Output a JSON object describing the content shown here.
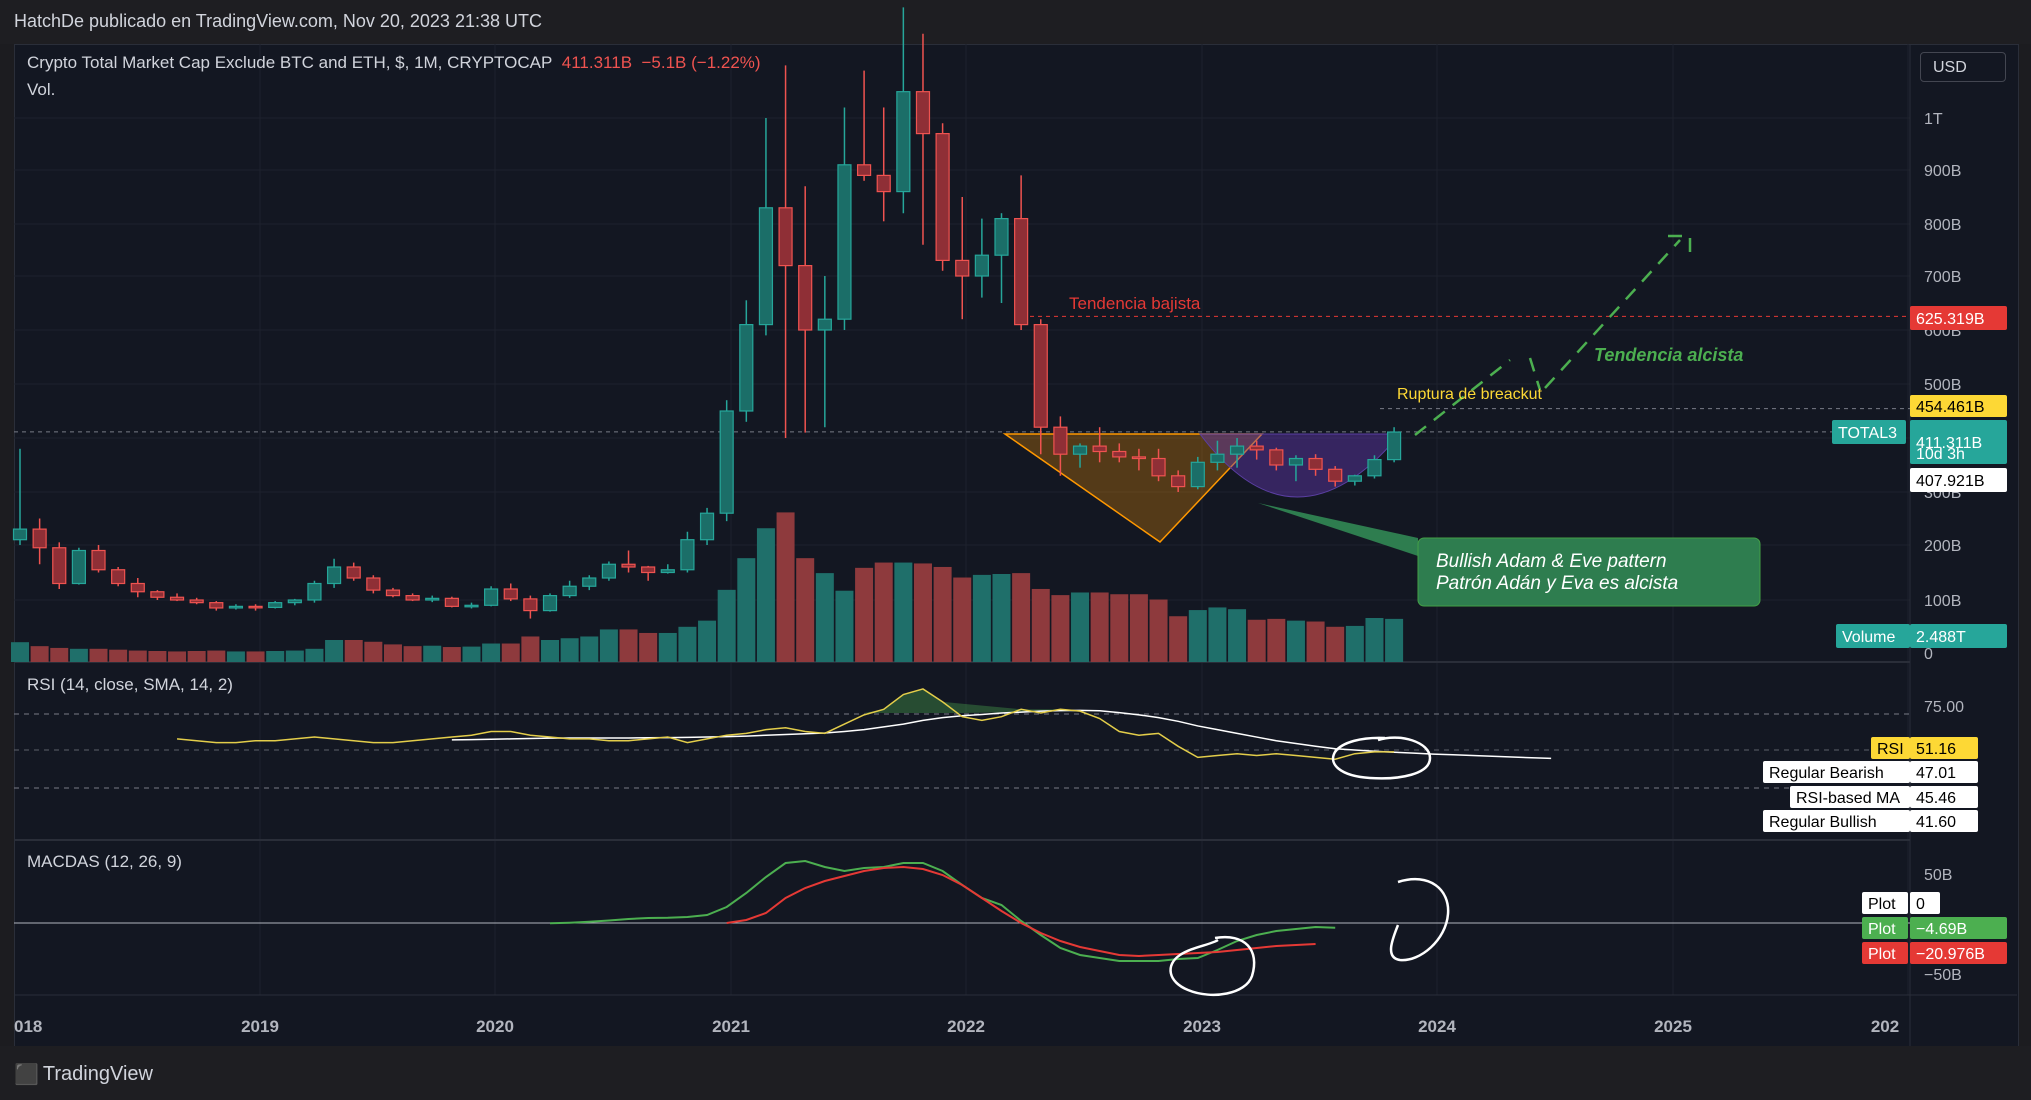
{
  "header": {
    "publisher": "HatchDe publicado en TradingView.com, Nov 20, 2023 21:38 UTC"
  },
  "currency_button": "USD",
  "main_legend": {
    "title": "Crypto Total Market Cap Exclude BTC and ETH, $, 1M, CRYPTOCAP",
    "last": "411.311B",
    "change": "−5.1B (−1.22%)",
    "vol": "Vol."
  },
  "rsi_legend": "RSI (14, close, SMA, 14, 2)",
  "macd_legend": "MACDAS (12, 26, 9)",
  "price_axis": [
    "1T",
    "900B",
    "800B",
    "700B",
    "600B",
    "500B",
    "400B",
    "300B",
    "200B",
    "100B",
    "0"
  ],
  "rsi_axis": [
    "75.00"
  ],
  "macd_axis": [
    "50B",
    "−50B"
  ],
  "time_axis": [
    "018",
    "2019",
    "2020",
    "2021",
    "2022",
    "2023",
    "2024",
    "2025",
    "202"
  ],
  "price_badges": {
    "resistance": "625.319B",
    "breakout": "454.461B",
    "symbol": "TOTAL3",
    "current": "411.311B",
    "countdown": "10d 3h",
    "prev": "407.921B",
    "volume_label": "Volume",
    "volume_value": "2.488T"
  },
  "rsi_badges": [
    {
      "label": "RSI",
      "value": "51.16"
    },
    {
      "label": "Regular Bearish",
      "value": "47.01"
    },
    {
      "label": "RSI-based MA",
      "value": "45.46"
    },
    {
      "label": "Regular Bullish",
      "value": "41.60"
    }
  ],
  "macd_badges": [
    {
      "label": "Plot",
      "value": "0"
    },
    {
      "label": "Plot",
      "value": "−4.69B"
    },
    {
      "label": "Plot",
      "value": "−20.976B"
    }
  ],
  "annotations": {
    "bearish": "Tendencia bajista",
    "bullish": "Tendencia alcista",
    "breakout": "Ruptura de breackut",
    "callout_line1": "Bullish  Adam & Eve pattern",
    "callout_line2": "Patrón Adán y Eva es alcista"
  },
  "brand": "TradingView",
  "colors": {
    "up": "#26a69a",
    "down": "#ef5350",
    "up_vol": "#1f6f6a",
    "down_vol": "#8e3a3d",
    "rsi": "#e3cd4a",
    "rsi_ma": "#ffffff",
    "macd": "#4caf50",
    "signal": "#e53935",
    "annotation_green": "#4caf50",
    "annotation_red": "#e53935",
    "annotation_yellow": "#fdd835"
  },
  "chart_data": {
    "type": "candlestick",
    "interval": "1M",
    "dates": [
      "2018-01",
      "2018-02",
      "2018-03",
      "2018-04",
      "2018-05",
      "2018-06",
      "2018-07",
      "2018-08",
      "2018-09",
      "2018-10",
      "2018-11",
      "2018-12",
      "2019-01",
      "2019-02",
      "2019-03",
      "2019-04",
      "2019-05",
      "2019-06",
      "2019-07",
      "2019-08",
      "2019-09",
      "2019-10",
      "2019-11",
      "2019-12",
      "2020-01",
      "2020-02",
      "2020-03",
      "2020-04",
      "2020-05",
      "2020-06",
      "2020-07",
      "2020-08",
      "2020-09",
      "2020-10",
      "2020-11",
      "2020-12",
      "2021-01",
      "2021-02",
      "2021-03",
      "2021-04",
      "2021-05",
      "2021-06",
      "2021-07",
      "2021-08",
      "2021-09",
      "2021-10",
      "2021-11",
      "2021-12",
      "2022-01",
      "2022-02",
      "2022-03",
      "2022-04",
      "2022-05",
      "2022-06",
      "2022-07",
      "2022-08",
      "2022-09",
      "2022-10",
      "2022-11",
      "2022-12",
      "2023-01",
      "2023-02",
      "2023-03",
      "2023-04",
      "2023-05",
      "2023-06",
      "2023-07",
      "2023-08",
      "2023-09",
      "2023-10",
      "2023-11"
    ],
    "ohlc_units": "B USD",
    "ohlc": [
      [
        210,
        380,
        200,
        230
      ],
      [
        230,
        250,
        165,
        195
      ],
      [
        195,
        205,
        120,
        130
      ],
      [
        130,
        195,
        128,
        190
      ],
      [
        190,
        200,
        150,
        155
      ],
      [
        155,
        160,
        125,
        130
      ],
      [
        130,
        140,
        105,
        115
      ],
      [
        115,
        118,
        100,
        105
      ],
      [
        105,
        112,
        98,
        100
      ],
      [
        100,
        104,
        92,
        95
      ],
      [
        95,
        98,
        80,
        85
      ],
      [
        85,
        92,
        82,
        88
      ],
      [
        88,
        92,
        80,
        86
      ],
      [
        86,
        98,
        84,
        95
      ],
      [
        95,
        102,
        90,
        100
      ],
      [
        100,
        135,
        95,
        130
      ],
      [
        130,
        175,
        122,
        160
      ],
      [
        160,
        168,
        135,
        140
      ],
      [
        140,
        145,
        112,
        118
      ],
      [
        118,
        122,
        105,
        108
      ],
      [
        108,
        112,
        98,
        100
      ],
      [
        100,
        108,
        96,
        103
      ],
      [
        103,
        106,
        86,
        88
      ],
      [
        88,
        95,
        84,
        90
      ],
      [
        90,
        125,
        88,
        120
      ],
      [
        120,
        130,
        98,
        102
      ],
      [
        102,
        108,
        65,
        80
      ],
      [
        80,
        112,
        78,
        108
      ],
      [
        108,
        135,
        104,
        125
      ],
      [
        125,
        145,
        118,
        140
      ],
      [
        140,
        170,
        135,
        165
      ],
      [
        165,
        190,
        150,
        160
      ],
      [
        160,
        162,
        135,
        150
      ],
      [
        150,
        165,
        148,
        155
      ],
      [
        155,
        225,
        150,
        210
      ],
      [
        210,
        270,
        200,
        260
      ],
      [
        260,
        470,
        245,
        450
      ],
      [
        450,
        655,
        430,
        610
      ],
      [
        610,
        1000,
        590,
        830
      ],
      [
        830,
        1100,
        400,
        720
      ],
      [
        720,
        870,
        410,
        600
      ],
      [
        600,
        700,
        420,
        620
      ],
      [
        620,
        1020,
        600,
        910
      ],
      [
        910,
        1090,
        880,
        890
      ],
      [
        890,
        1020,
        805,
        860
      ],
      [
        860,
        1210,
        820,
        1050
      ],
      [
        1050,
        1160,
        760,
        970
      ],
      [
        970,
        990,
        710,
        730
      ],
      [
        730,
        850,
        620,
        700
      ],
      [
        700,
        810,
        660,
        740
      ],
      [
        740,
        820,
        650,
        810
      ],
      [
        810,
        890,
        600,
        610
      ],
      [
        610,
        620,
        370,
        420
      ],
      [
        420,
        440,
        330,
        370
      ],
      [
        370,
        390,
        345,
        385
      ],
      [
        385,
        420,
        355,
        375
      ],
      [
        375,
        390,
        355,
        365
      ],
      [
        365,
        380,
        340,
        362
      ],
      [
        362,
        380,
        320,
        330
      ],
      [
        330,
        340,
        300,
        310
      ],
      [
        310,
        365,
        305,
        355
      ],
      [
        355,
        395,
        340,
        370
      ],
      [
        370,
        400,
        345,
        385
      ],
      [
        385,
        395,
        360,
        378
      ],
      [
        378,
        382,
        340,
        350
      ],
      [
        350,
        368,
        320,
        362
      ],
      [
        362,
        370,
        330,
        342
      ],
      [
        342,
        348,
        310,
        320
      ],
      [
        320,
        332,
        312,
        330
      ],
      [
        330,
        368,
        325,
        360
      ],
      [
        360,
        420,
        355,
        411
      ]
    ],
    "volume_units": "B USD",
    "volume": [
      225,
      180,
      160,
      150,
      150,
      140,
      130,
      125,
      120,
      125,
      130,
      120,
      120,
      125,
      130,
      150,
      250,
      250,
      230,
      200,
      180,
      185,
      170,
      175,
      210,
      210,
      290,
      250,
      270,
      290,
      370,
      370,
      330,
      330,
      400,
      470,
      820,
      1180,
      1520,
      1700,
      1180,
      1010,
      810,
      1070,
      1130,
      1130,
      1120,
      1080,
      960,
      990,
      1000,
      1010,
      830,
      760,
      790,
      790,
      770,
      770,
      710,
      520,
      590,
      620,
      600,
      480,
      490,
      470,
      460,
      400,
      410,
      500,
      490
    ],
    "rsi_range": [
      0,
      100
    ],
    "rsi_band": [
      30,
      70
    ],
    "rsi": [
      56,
      55,
      54,
      54,
      55,
      55,
      56,
      57,
      56,
      55,
      54,
      54,
      55,
      56,
      57,
      58,
      60,
      60,
      58,
      57,
      56,
      56,
      55,
      55,
      56,
      57,
      54,
      56,
      58,
      59,
      61,
      62,
      60,
      59,
      64,
      69,
      72,
      80,
      83,
      76,
      68,
      66,
      68,
      72,
      70,
      72,
      71,
      67,
      60,
      58,
      59,
      52,
      46,
      47,
      48,
      47,
      48,
      47,
      46,
      45,
      48,
      49,
      49,
      48,
      47,
      46,
      47,
      45,
      47,
      48,
      51
    ],
    "rsi_ma": [
      null,
      null,
      null,
      null,
      null,
      null,
      null,
      null,
      null,
      null,
      null,
      null,
      null,
      null,
      55.5,
      55.6,
      55.8,
      56,
      56.2,
      56.4,
      56.5,
      56.5,
      56.5,
      56.5,
      56.6,
      56.7,
      56.8,
      57,
      57.2,
      57.5,
      58,
      58.4,
      58.8,
      59.2,
      60,
      61,
      62.5,
      64,
      66,
      67.5,
      68.5,
      69.2,
      70,
      70.5,
      71,
      71.3,
      71.4,
      71.2,
      70.2,
      69,
      67.5,
      65.5,
      63,
      61,
      59,
      57,
      55,
      53.5,
      52,
      50.7,
      50,
      49.3,
      48.8,
      48.3,
      47.8,
      47.4,
      47,
      46.6,
      46.2,
      45.8,
      45.46
    ],
    "macd_range_B": [
      -80,
      80
    ],
    "macd_x_start_index": 27,
    "macd": [
      -0.2,
      0.3,
      1.2,
      2.5,
      4,
      5,
      5.2,
      6,
      8,
      16,
      30,
      46,
      60,
      62,
      56,
      52,
      55,
      56,
      60,
      60,
      52,
      38,
      25,
      18,
      2,
      -12,
      -25,
      -32,
      -35,
      -38,
      -38,
      -38,
      -36,
      -35,
      -27,
      -18,
      -12,
      -8,
      -6,
      -4,
      -4.69
    ],
    "signal_x_start_index": 36,
    "signal": [
      0,
      3,
      10,
      25,
      35,
      42,
      47,
      52,
      55,
      56,
      54,
      48,
      38,
      25,
      12,
      0,
      -10,
      -18,
      -24,
      -28,
      -32,
      -33,
      -32,
      -31,
      -30,
      -29,
      -27,
      -25,
      -23,
      -22,
      -20.976
    ],
    "price_lines": {
      "resistance_B": 625.319,
      "breakout_B": 454.461,
      "current_B": 411.311
    },
    "price_axis_scale": "log",
    "price_axis_range_B": [
      0,
      1300
    ]
  }
}
